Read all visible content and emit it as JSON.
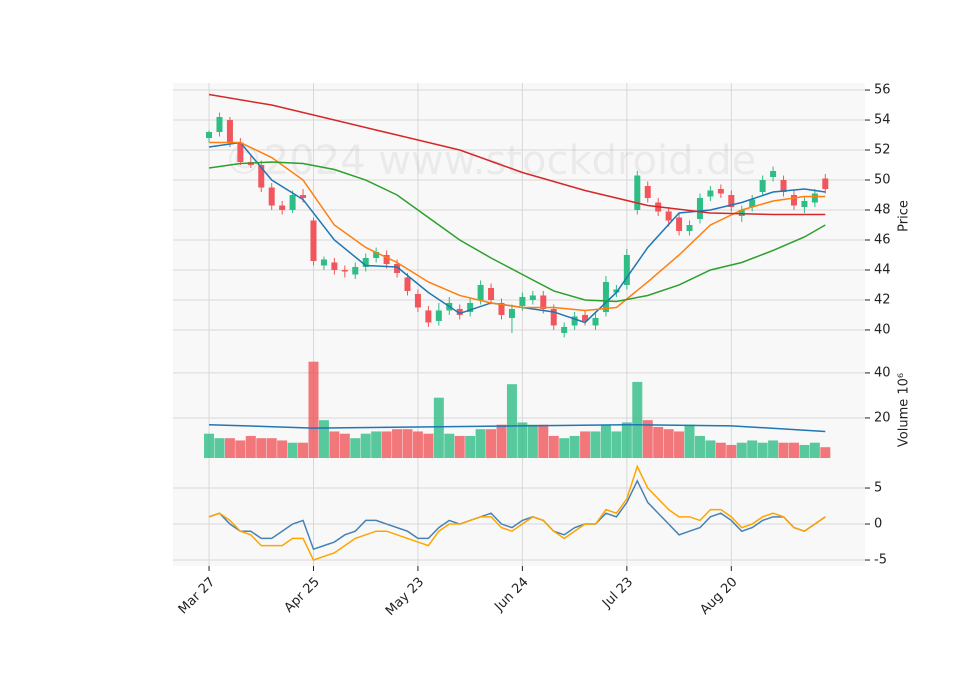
{
  "chart_data": [
    {
      "type": "candlestick",
      "ylabel": "Price",
      "watermark": "©2024 www.stockdroid.de",
      "xlim": [
        -3.45,
        62.8
      ],
      "ylim": [
        38.53,
        56.47
      ],
      "yticks": [
        40,
        42,
        44,
        46,
        48,
        50,
        52,
        54,
        56
      ],
      "grid": true,
      "up_color": "#2ebd85",
      "down_color": "#f0565b",
      "open": [
        52.8,
        53.2,
        54.0,
        52.5,
        51.2,
        51.0,
        49.5,
        48.3,
        48.0,
        49.0,
        47.3,
        44.3,
        44.5,
        44.0,
        43.7,
        44.2,
        44.8,
        45.0,
        44.4,
        43.5,
        42.4,
        41.3,
        40.6,
        41.3,
        41.4,
        41.2,
        42.0,
        42.8,
        41.8,
        40.8,
        41.6,
        42.0,
        42.3,
        41.4,
        39.8,
        40.3,
        41.0,
        40.3,
        41.2,
        42.5,
        43.0,
        48.0,
        49.6,
        48.5,
        47.9,
        47.5,
        46.6,
        47.4,
        48.9,
        49.4,
        49.0,
        47.6,
        48.2,
        49.2,
        50.2,
        50.0,
        49.0,
        48.2,
        48.5,
        50.1
      ],
      "high": [
        53.3,
        54.5,
        54.2,
        52.8,
        51.6,
        51.3,
        49.8,
        48.6,
        49.3,
        49.4,
        47.5,
        44.9,
        44.8,
        44.3,
        44.5,
        45.1,
        45.5,
        45.3,
        44.7,
        43.8,
        42.7,
        41.6,
        41.8,
        42.2,
        41.7,
        42.1,
        43.3,
        43.1,
        42.1,
        41.7,
        42.5,
        42.6,
        42.6,
        41.7,
        40.5,
        41.2,
        41.3,
        41.1,
        43.6,
        43.0,
        45.4,
        50.6,
        49.9,
        48.8,
        48.2,
        47.8,
        47.3,
        49.1,
        49.6,
        49.7,
        49.3,
        48.3,
        49.0,
        50.3,
        50.9,
        50.3,
        49.3,
        48.9,
        49.4,
        50.4
      ],
      "low": [
        52.5,
        52.9,
        52.2,
        51.0,
        50.8,
        49.2,
        48.0,
        47.7,
        47.8,
        48.5,
        44.3,
        44.0,
        43.7,
        43.5,
        43.4,
        43.9,
        44.5,
        44.1,
        43.5,
        42.3,
        41.2,
        40.2,
        40.3,
        41.0,
        40.7,
        40.9,
        41.7,
        41.7,
        40.7,
        39.8,
        41.3,
        41.7,
        41.1,
        40.0,
        39.5,
        40.0,
        40.3,
        40.0,
        40.9,
        42.2,
        42.7,
        47.7,
        48.5,
        47.6,
        46.9,
        46.3,
        46.3,
        47.1,
        48.6,
        48.8,
        47.9,
        47.2,
        47.9,
        48.9,
        49.9,
        48.9,
        48.0,
        47.8,
        48.2,
        49.1
      ],
      "close": [
        53.2,
        54.2,
        52.5,
        51.2,
        51.0,
        49.5,
        48.3,
        48.0,
        49.0,
        48.8,
        44.6,
        44.7,
        44.0,
        43.9,
        44.2,
        44.8,
        45.2,
        44.4,
        43.8,
        42.6,
        41.5,
        40.5,
        41.3,
        41.8,
        41.0,
        41.8,
        43.0,
        42.0,
        41.0,
        41.4,
        42.2,
        42.3,
        41.4,
        40.3,
        40.2,
        40.9,
        40.6,
        40.8,
        43.2,
        42.7,
        45.0,
        50.3,
        48.8,
        47.9,
        47.3,
        46.6,
        47.0,
        48.8,
        49.3,
        49.1,
        48.2,
        48.0,
        48.7,
        50.0,
        50.6,
        49.2,
        48.3,
        48.6,
        49.1,
        49.4
      ],
      "series": [
        {
          "color": "#1f77b4",
          "x": [
            0,
            3,
            6,
            9,
            12,
            15,
            18,
            21,
            24,
            27,
            30,
            33,
            36,
            39,
            42,
            45,
            48,
            51,
            54,
            57,
            59
          ],
          "values": [
            52.2,
            52.5,
            50.0,
            48.7,
            46.0,
            44.3,
            44.2,
            42.5,
            41.1,
            41.8,
            41.5,
            41.2,
            40.5,
            42.5,
            45.5,
            47.8,
            48.0,
            48.5,
            49.2,
            49.4,
            49.2
          ]
        },
        {
          "color": "#ff7f0e",
          "x": [
            0,
            3,
            6,
            9,
            12,
            15,
            18,
            21,
            24,
            27,
            30,
            33,
            36,
            39,
            42,
            45,
            48,
            51,
            54,
            57,
            59
          ],
          "values": [
            52.5,
            52.5,
            51.5,
            50.0,
            47.0,
            45.5,
            44.5,
            43.2,
            42.3,
            41.8,
            41.5,
            41.5,
            41.3,
            41.5,
            43.2,
            45.0,
            47.0,
            48.0,
            48.6,
            48.9,
            48.9
          ]
        },
        {
          "color": "#2ca02c",
          "x": [
            0,
            3,
            6,
            9,
            12,
            15,
            18,
            21,
            24,
            27,
            30,
            33,
            36,
            39,
            42,
            45,
            48,
            51,
            54,
            57,
            59
          ],
          "values": [
            50.8,
            51.1,
            51.2,
            51.1,
            50.7,
            50.0,
            49.0,
            47.5,
            46.0,
            44.8,
            43.7,
            42.6,
            42.0,
            41.9,
            42.3,
            43.0,
            44.0,
            44.5,
            45.3,
            46.2,
            47.0
          ]
        },
        {
          "color": "#d62728",
          "x": [
            0,
            6,
            12,
            18,
            24,
            30,
            36,
            42,
            48,
            54,
            59
          ],
          "values": [
            55.7,
            55.0,
            54.0,
            53.0,
            52.0,
            50.5,
            49.3,
            48.3,
            47.8,
            47.7,
            47.7
          ]
        }
      ]
    },
    {
      "type": "bar",
      "ylabel": "Volume 10⁶",
      "ylim": [
        2.2,
        49.3
      ],
      "yticks": [
        20,
        40
      ],
      "grid": true,
      "values": [
        13,
        11,
        11,
        10,
        12,
        11,
        11,
        10,
        9,
        9,
        45,
        19,
        14,
        13,
        11,
        13,
        14,
        14,
        15,
        15,
        14,
        13,
        29,
        13,
        12,
        12,
        15,
        15,
        17,
        35,
        18,
        17,
        17,
        12,
        11,
        12,
        14,
        14,
        17,
        14,
        18,
        36,
        19,
        16,
        15,
        14,
        17,
        12,
        10,
        9,
        8,
        9,
        10,
        9,
        10,
        9,
        9,
        8,
        9,
        7
      ],
      "series": [
        {
          "color": "#1f77b4",
          "x": [
            0,
            10,
            20,
            30,
            40,
            50,
            59
          ],
          "values": [
            17,
            15.5,
            16,
            16.5,
            17,
            16.5,
            14
          ]
        }
      ]
    },
    {
      "type": "line",
      "ylim": [
        -5.83,
        9.17
      ],
      "yticks": [
        -5,
        0,
        5
      ],
      "grid": true,
      "xticks": [
        {
          "value": 0,
          "label": "Mar 27"
        },
        {
          "value": 10,
          "label": "Apr 25"
        },
        {
          "value": 20,
          "label": "May 23"
        },
        {
          "value": 30,
          "label": "Jun 24"
        },
        {
          "value": 40,
          "label": "Jul 23"
        },
        {
          "value": 50,
          "label": "Aug 20"
        }
      ],
      "series": [
        {
          "color": "#4682b4",
          "values": [
            1,
            1.5,
            0,
            -1,
            -1,
            -2,
            -2,
            -1,
            0,
            0.5,
            -3.5,
            -3,
            -2.5,
            -1.5,
            -1,
            0.5,
            0.5,
            0,
            -0.5,
            -1,
            -2,
            -2,
            -0.5,
            0.5,
            0,
            0.5,
            1,
            1.5,
            0,
            -0.5,
            0.5,
            1,
            0.5,
            -1,
            -1.5,
            -0.5,
            0,
            0,
            1.5,
            1,
            3,
            6,
            3,
            1.5,
            0,
            -1.5,
            -1,
            -0.5,
            1,
            1.5,
            0.5,
            -1,
            -0.5,
            0.5,
            1,
            1,
            -0.5,
            -1,
            0,
            1
          ]
        },
        {
          "color": "#ffa500",
          "values": [
            1,
            1.5,
            0.5,
            -1,
            -1.5,
            -3,
            -3,
            -3,
            -2,
            -2,
            -5,
            -4.5,
            -4,
            -3,
            -2,
            -1.5,
            -1,
            -1,
            -1.5,
            -2,
            -2.5,
            -3,
            -1,
            0,
            0,
            0.5,
            1,
            1,
            -0.5,
            -1,
            0,
            1,
            0.5,
            -1,
            -2,
            -1,
            0,
            0,
            2,
            1.5,
            3.5,
            8,
            5,
            3.5,
            2,
            1,
            1,
            0.5,
            2,
            2,
            1,
            -0.5,
            0,
            1,
            1.5,
            1,
            -0.5,
            -1,
            0,
            1
          ]
        }
      ]
    }
  ]
}
